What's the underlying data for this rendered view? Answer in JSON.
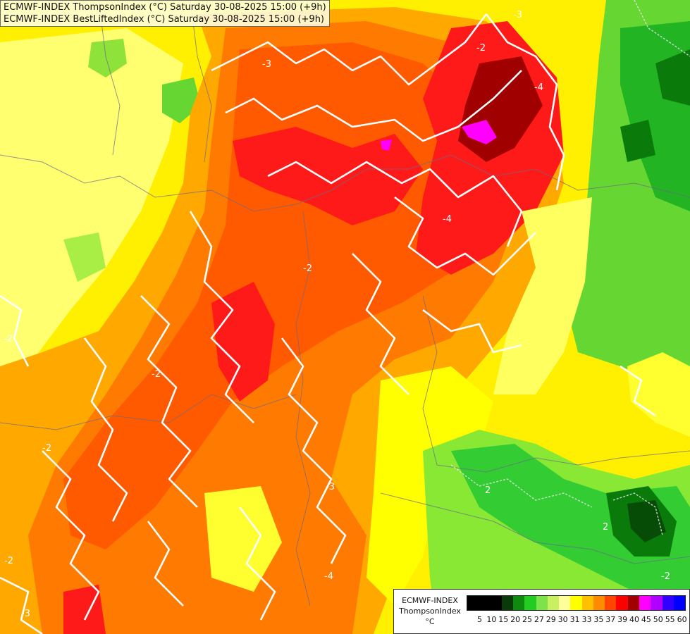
{
  "titles": {
    "line1": "ECMWF-INDEX ThompsonIndex (°C) Saturday 30-08-2025 15:00 (+9h)",
    "line2": "ECMWF-INDEX BestLiftedIndex (°C) Saturday 30-08-2025 15:00 (+9h)"
  },
  "legend": {
    "title_line1": "ECMWF-INDEX",
    "title_line2": "ThompsonIndex",
    "title_line3": "°C",
    "ticks": [
      "5",
      "10",
      "15",
      "20",
      "25",
      "27",
      "29",
      "30",
      "31",
      "33",
      "35",
      "37",
      "39",
      "40",
      "45",
      "50",
      "55",
      "60"
    ],
    "colors": [
      "#000000",
      "#000000",
      "#000000",
      "#0a3a0a",
      "#0f8a0f",
      "#22cc22",
      "#7ee34a",
      "#c8f060",
      "#ffff99",
      "#ffff00",
      "#ffc000",
      "#ff8c00",
      "#ff4500",
      "#ff0000",
      "#a00000",
      "#ff00ff",
      "#b000ff",
      "#3300ff",
      "#0000ff"
    ]
  },
  "contour_labels": [
    "-3",
    "-2",
    "-4",
    "-2",
    "-2",
    "-3",
    "-4",
    "-2",
    "-2",
    "-3",
    "-4",
    "-2",
    "2",
    "2",
    "-2",
    "-3"
  ],
  "colors": {
    "yellow": "#ffff00",
    "light_yellow": "#ffff80",
    "orange": "#ffa500",
    "dark_orange": "#ff7700",
    "red_orange": "#ff5a00",
    "red": "#ff1a1a",
    "dark_red": "#a00000",
    "magenta": "#ff00ff",
    "lime": "#ccff33",
    "light_green": "#88e833",
    "green": "#33cc33",
    "dark_green": "#0a7a0a",
    "deep_green": "#064c06"
  }
}
